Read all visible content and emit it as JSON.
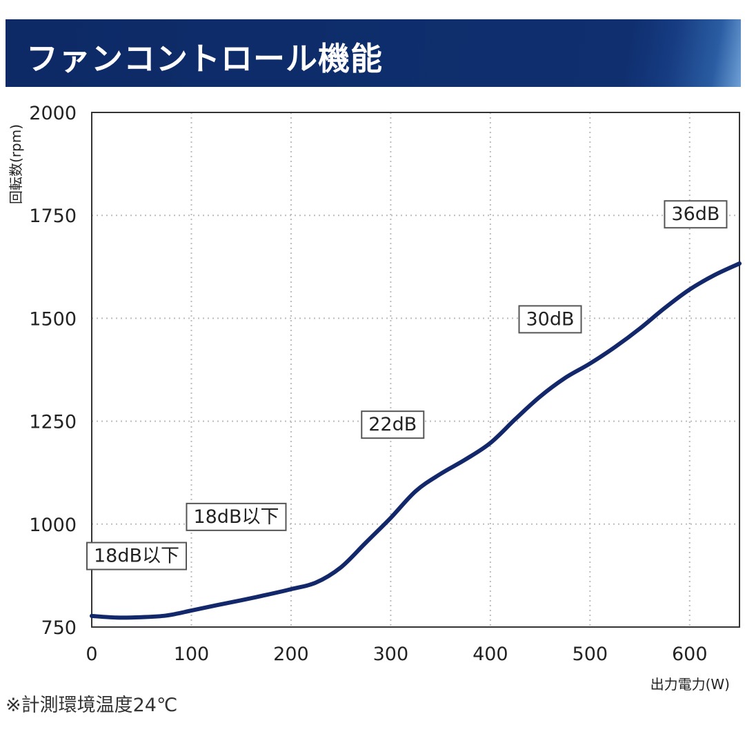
{
  "header": {
    "title": "ファンコントロール機能"
  },
  "note": "※計測環境温度24℃",
  "colors": {
    "header_bg": "#0f2f6f",
    "line": "#12286a",
    "grid": "#bbbbbb"
  },
  "chart_data": {
    "type": "line",
    "title": "ファンコントロール機能",
    "xlabel": "出力電力(W)",
    "ylabel": "回転数(rpm)",
    "xlim": [
      0,
      650
    ],
    "ylim": [
      750,
      2000
    ],
    "x_ticks": [
      {
        "value": 0,
        "label": "0"
      },
      {
        "value": 100,
        "label": "100"
      },
      {
        "value": 200,
        "label": "200"
      },
      {
        "value": 300,
        "label": "300"
      },
      {
        "value": 400,
        "label": "400"
      },
      {
        "value": 500,
        "label": "500"
      },
      {
        "value": 600,
        "label": "600"
      }
    ],
    "y_ticks": [
      {
        "value": 750,
        "label": "750"
      },
      {
        "value": 1000,
        "label": "1000"
      },
      {
        "value": 1250,
        "label": "1250"
      },
      {
        "value": 1500,
        "label": "1500"
      },
      {
        "value": 1750,
        "label": "1750"
      },
      {
        "value": 2000,
        "label": "2000"
      }
    ],
    "grid": true,
    "series": [
      {
        "x": [
          0,
          25,
          50,
          75,
          100,
          125,
          150,
          175,
          200,
          225,
          250,
          275,
          300,
          325,
          350,
          375,
          400,
          425,
          450,
          475,
          500,
          525,
          550,
          575,
          600,
          625,
          650
        ],
        "y": [
          777,
          773,
          774,
          778,
          790,
          803,
          815,
          828,
          842,
          858,
          895,
          955,
          1015,
          1080,
          1122,
          1157,
          1197,
          1255,
          1310,
          1355,
          1390,
          1430,
          1475,
          1525,
          1570,
          1605,
          1633
        ]
      }
    ],
    "annotations": [
      {
        "text": "18dB以下",
        "x": 45,
        "y": 925
      },
      {
        "text": "18dB以下",
        "x": 145,
        "y": 1020
      },
      {
        "text": "22dB",
        "x": 302,
        "y": 1244
      },
      {
        "text": "30dB",
        "x": 460,
        "y": 1500
      },
      {
        "text": "36dB",
        "x": 606,
        "y": 1755
      }
    ]
  }
}
